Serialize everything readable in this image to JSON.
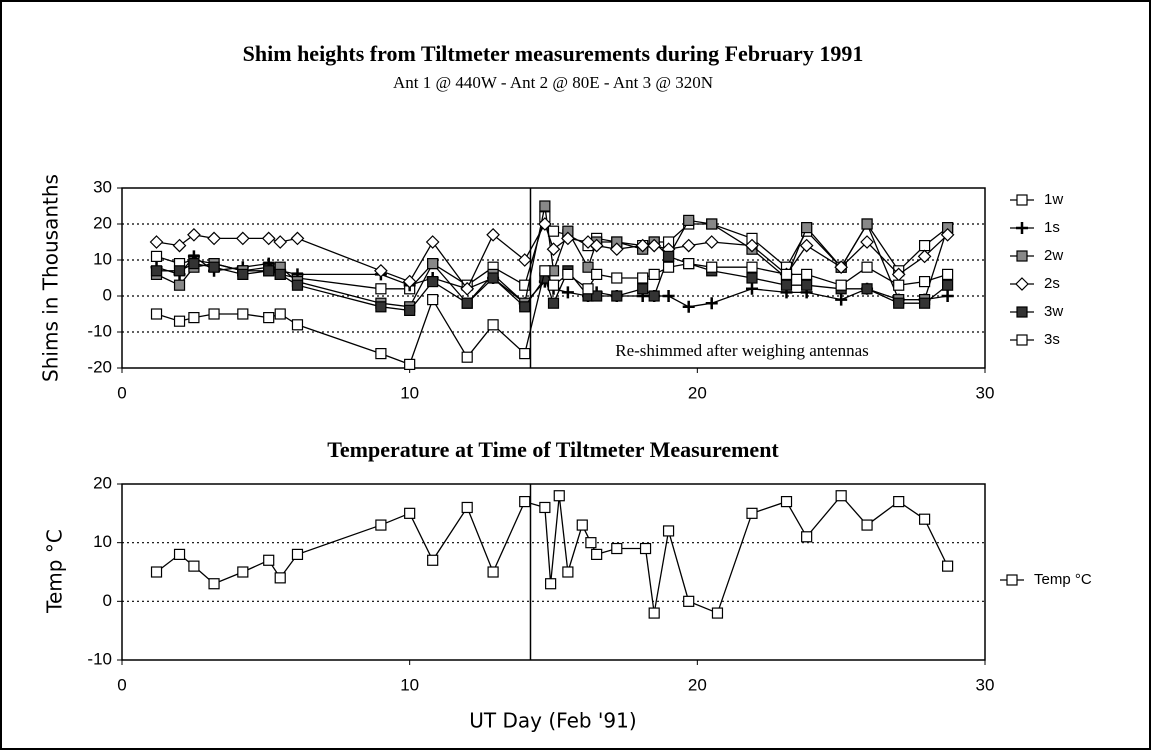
{
  "chart_data": [
    {
      "type": "line",
      "title": "Shim heights from Tiltmeter measurements during February 1991",
      "subtitle": "Ant 1 @ 440W - Ant 2 @ 80E - Ant 3 @ 320N",
      "y_label": "Shims in Thousanths",
      "annotation": "Re-shimmed after weighing antennas",
      "vline": 14.2,
      "x": [
        1.2,
        2,
        2.5,
        3.2,
        4.2,
        5.1,
        5.5,
        6.1,
        9,
        10,
        10.8,
        12,
        12.9,
        14,
        14.7,
        15,
        15.5,
        16.2,
        16.5,
        17.2,
        18.1,
        18.5,
        19,
        19.7,
        20.5,
        21.9,
        23.1,
        23.8,
        25,
        25.9,
        27,
        27.9,
        28.7
      ],
      "series": [
        {
          "name": "1w",
          "color": "#000000",
          "marker": "square-open",
          "values": [
            11,
            9,
            10,
            9,
            7,
            8,
            6,
            5,
            2,
            2,
            9,
            3,
            8,
            3,
            22,
            18,
            17,
            14,
            16,
            15,
            14,
            15,
            15,
            20,
            20,
            16,
            8,
            18,
            8,
            20,
            7,
            14,
            19
          ]
        },
        {
          "name": "1s",
          "color": "#000000",
          "marker": "plus",
          "values": [
            8,
            6,
            11,
            7,
            8,
            9,
            7,
            6,
            6,
            3,
            5,
            2,
            5,
            -2,
            4,
            2,
            1,
            0,
            1,
            0,
            0,
            0,
            0,
            -3,
            -2,
            2,
            1,
            1,
            -1,
            2,
            -1,
            -1,
            0
          ]
        },
        {
          "name": "2w",
          "color": "#000000",
          "marker": "square-grey",
          "values": [
            6,
            3,
            8,
            9,
            7,
            7,
            8,
            4,
            -2,
            -3,
            9,
            -2,
            6,
            -2,
            25,
            7,
            18,
            8,
            15,
            15,
            13,
            15,
            11,
            21,
            20,
            13,
            5,
            19,
            8,
            20,
            -1,
            -1,
            19
          ]
        },
        {
          "name": "2s",
          "color": "#000000",
          "marker": "diamond-open",
          "values": [
            15,
            14,
            17,
            16,
            16,
            16,
            15,
            16,
            7,
            4,
            15,
            2,
            17,
            10,
            20,
            13,
            16,
            15,
            14,
            13,
            14,
            14,
            13,
            14,
            15,
            14,
            6,
            14,
            8,
            15,
            6,
            11,
            17
          ]
        },
        {
          "name": "3w",
          "color": "#000000",
          "marker": "square-dark",
          "values": [
            7,
            7,
            9,
            8,
            6,
            7,
            6,
            3,
            -3,
            -4,
            4,
            -2,
            5,
            -3,
            5,
            -2,
            7,
            0,
            0,
            0,
            2,
            0,
            11,
            9,
            7,
            5,
            3,
            3,
            2,
            2,
            -2,
            -2,
            3
          ]
        },
        {
          "name": "3s",
          "color": "#000000",
          "marker": "square-open",
          "values": [
            -5,
            -7,
            -6,
            -5,
            -5,
            -6,
            -5,
            -8,
            -16,
            -19,
            -1,
            -17,
            -8,
            -16,
            7,
            3,
            6,
            2,
            6,
            5,
            5,
            6,
            8,
            9,
            8,
            8,
            6,
            6,
            3,
            8,
            3,
            4,
            6
          ]
        }
      ],
      "xlim": [
        0,
        30
      ],
      "xticks": [
        0,
        10,
        20,
        30
      ],
      "ylim": [
        -20,
        30
      ],
      "yticks": [
        30,
        20,
        10,
        0,
        -10,
        -20
      ],
      "grid": true,
      "legend": "right"
    },
    {
      "type": "line",
      "title": "Temperature at Time of Tiltmeter Measurement",
      "y_label": "Temp °C",
      "x_label": "UT Day (Feb '91)",
      "vline": 14.2,
      "x": [
        1.2,
        2,
        2.5,
        3.2,
        4.2,
        5.1,
        5.5,
        6.1,
        9,
        10,
        10.8,
        12,
        12.9,
        14,
        14.7,
        14.9,
        15.2,
        15.5,
        16,
        16.3,
        16.5,
        17.2,
        18.2,
        18.5,
        19,
        19.7,
        20.7,
        21.9,
        23.1,
        23.8,
        25,
        25.9,
        27,
        27.9,
        28.7
      ],
      "series": [
        {
          "name": "Temp °C",
          "color": "#000000",
          "marker": "square-open",
          "values": [
            5,
            8,
            6,
            3,
            5,
            7,
            4,
            8,
            13,
            15,
            7,
            16,
            5,
            17,
            16,
            3,
            18,
            5,
            13,
            10,
            8,
            9,
            9,
            -2,
            12,
            0,
            -2,
            15,
            17,
            11,
            18,
            13,
            17,
            14,
            6
          ]
        }
      ],
      "xlim": [
        0,
        30
      ],
      "xticks": [
        0,
        10,
        20,
        30
      ],
      "ylim": [
        -10,
        20
      ],
      "yticks": [
        20,
        10,
        0,
        -10
      ],
      "grid": true,
      "legend": "right"
    }
  ]
}
